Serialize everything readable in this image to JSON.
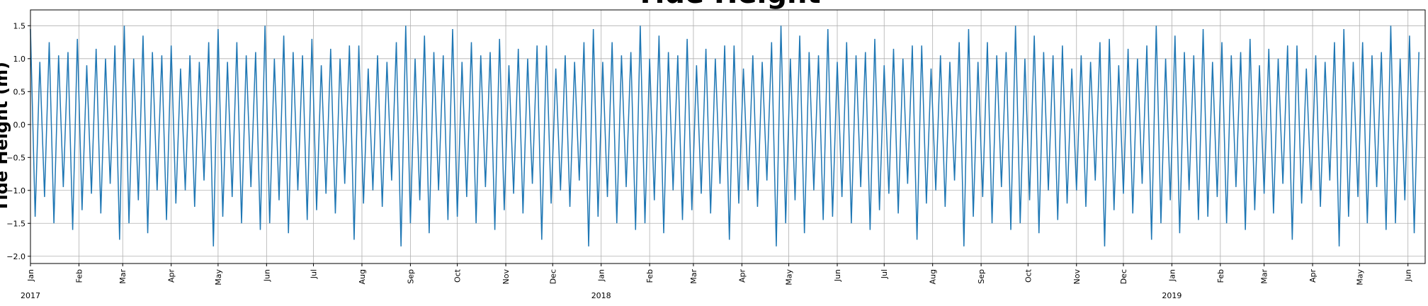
{
  "chart_data": {
    "type": "line",
    "title": "Tide Height",
    "y_label": "Tide Height (m)",
    "x": [
      0,
      3,
      6,
      9,
      12,
      15,
      18,
      21,
      24,
      27,
      30,
      33,
      36,
      39,
      42,
      45,
      48,
      51,
      54,
      57,
      60,
      63,
      66,
      69,
      72,
      75,
      78,
      81,
      84,
      87,
      90,
      93,
      96,
      99,
      102,
      105,
      108,
      111,
      114,
      117,
      120,
      123,
      126,
      129,
      132,
      135,
      138,
      141,
      144,
      147,
      150,
      153,
      156,
      159,
      162,
      165,
      168,
      171,
      174,
      177,
      180,
      183,
      186,
      189,
      192,
      195,
      198,
      201,
      204,
      207,
      210,
      213,
      216,
      219,
      222,
      225,
      228,
      231,
      234,
      237,
      240,
      243,
      246,
      249,
      252,
      255,
      258,
      261,
      264,
      267,
      270,
      273,
      276,
      279,
      282,
      285,
      288,
      291,
      294,
      297,
      300,
      303,
      306,
      309,
      312,
      315,
      318,
      321,
      324,
      327,
      330,
      333,
      336,
      339,
      342,
      345,
      348,
      351,
      354,
      357,
      360,
      363,
      366,
      369,
      372,
      375,
      378,
      381,
      384,
      387,
      390,
      393,
      396,
      399,
      402,
      405,
      408,
      411,
      414,
      417,
      420,
      423,
      426,
      429,
      432,
      435,
      438,
      441,
      444,
      447,
      450,
      453,
      456,
      459,
      462,
      465,
      468,
      471,
      474,
      477,
      480,
      483,
      486,
      489,
      492,
      495,
      498,
      501,
      504,
      507,
      510,
      513,
      516,
      519,
      522,
      525,
      528,
      531,
      534,
      537,
      540,
      543,
      546,
      549,
      552,
      555,
      558,
      561,
      564,
      567,
      570,
      573,
      576,
      579,
      582,
      585,
      588,
      591,
      594,
      597,
      600,
      603,
      606,
      609,
      612,
      615,
      618,
      621,
      624,
      627,
      630,
      633,
      636,
      639,
      642,
      645,
      648,
      651,
      654,
      657,
      660,
      663,
      666,
      669,
      672,
      675,
      678,
      681,
      684,
      687,
      690,
      693,
      696,
      699,
      702,
      705,
      708,
      711,
      714,
      717,
      720,
      723,
      726,
      729,
      732,
      735,
      738,
      741,
      744,
      747,
      750,
      753,
      756,
      759,
      762,
      765,
      768,
      771,
      774,
      777,
      780,
      783,
      786,
      789,
      792,
      795,
      798,
      801,
      804,
      807,
      810,
      813,
      816,
      819,
      822,
      825,
      828,
      831,
      834,
      837,
      840,
      843,
      846,
      849,
      852,
      855,
      858,
      861,
      864,
      867,
      870,
      873,
      876,
      879,
      882,
      885,
      888
    ],
    "series": [
      {
        "color": "#1f77b4",
        "values": [
          1.45,
          -1.4,
          0.95,
          -1.1,
          1.25,
          -1.5,
          1.05,
          -0.95,
          1.1,
          -1.6,
          1.3,
          -1.3,
          0.9,
          -1.05,
          1.15,
          -1.35,
          1.0,
          -0.9,
          1.2,
          -1.75,
          1.5,
          -1.5,
          1.0,
          -1.15,
          1.35,
          -1.65,
          1.1,
          -1.0,
          1.05,
          -1.45,
          1.2,
          -1.2,
          0.85,
          -1.0,
          1.05,
          -1.25,
          0.95,
          -0.85,
          1.25,
          -1.85,
          1.45,
          -1.4,
          0.95,
          -1.1,
          1.25,
          -1.5,
          1.05,
          -0.95,
          1.1,
          -1.6,
          1.5,
          -1.5,
          1.0,
          -1.15,
          1.35,
          -1.65,
          1.1,
          -1.0,
          1.05,
          -1.45,
          1.3,
          -1.3,
          0.9,
          -1.05,
          1.15,
          -1.35,
          1.0,
          -0.9,
          1.2,
          -1.75,
          1.2,
          -1.2,
          0.85,
          -1.0,
          1.05,
          -1.25,
          0.95,
          -0.85,
          1.25,
          -1.85,
          1.5,
          -1.5,
          1.0,
          -1.15,
          1.35,
          -1.65,
          1.1,
          -1.0,
          1.05,
          -1.45,
          1.45,
          -1.4,
          0.95,
          -1.1,
          1.25,
          -1.5,
          1.05,
          -0.95,
          1.1,
          -1.6,
          1.3,
          -1.3,
          0.9,
          -1.05,
          1.15,
          -1.35,
          1.0,
          -0.9,
          1.2,
          -1.75,
          1.2,
          -1.2,
          0.85,
          -1.0,
          1.05,
          -1.25,
          0.95,
          -0.85,
          1.25,
          -1.85,
          1.45,
          -1.4,
          0.95,
          -1.1,
          1.25,
          -1.5,
          1.05,
          -0.95,
          1.1,
          -1.6,
          1.5,
          -1.5,
          1.0,
          -1.15,
          1.35,
          -1.65,
          1.1,
          -1.0,
          1.05,
          -1.45,
          1.3,
          -1.3,
          0.9,
          -1.05,
          1.15,
          -1.35,
          1.0,
          -0.9,
          1.2,
          -1.75,
          1.2,
          -1.2,
          0.85,
          -1.0,
          1.05,
          -1.25,
          0.95,
          -0.85,
          1.25,
          -1.85,
          1.5,
          -1.5,
          1.0,
          -1.15,
          1.35,
          -1.65,
          1.1,
          -1.0,
          1.05,
          -1.45,
          1.45,
          -1.4,
          0.95,
          -1.1,
          1.25,
          -1.5,
          1.05,
          -0.95,
          1.1,
          -1.6,
          1.3,
          -1.3,
          0.9,
          -1.05,
          1.15,
          -1.35,
          1.0,
          -0.9,
          1.2,
          -1.75,
          1.2,
          -1.2,
          0.85,
          -1.0,
          1.05,
          -1.25,
          0.95,
          -0.85,
          1.25,
          -1.85,
          1.45,
          -1.4,
          0.95,
          -1.1,
          1.25,
          -1.5,
          1.05,
          -0.95,
          1.1,
          -1.6,
          1.5,
          -1.5,
          1.0,
          -1.15,
          1.35,
          -1.65,
          1.1,
          -1.0,
          1.05,
          -1.45,
          1.2,
          -1.2,
          0.85,
          -1.0,
          1.05,
          -1.25,
          0.95,
          -0.85,
          1.25,
          -1.85,
          1.3,
          -1.3,
          0.9,
          -1.05,
          1.15,
          -1.35,
          1.0,
          -0.9,
          1.2,
          -1.75,
          1.5,
          -1.5,
          1.0,
          -1.15,
          1.35,
          -1.65,
          1.1,
          -1.0,
          1.05,
          -1.45,
          1.45,
          -1.4,
          0.95,
          -1.1,
          1.25,
          -1.5,
          1.05,
          -0.95,
          1.1,
          -1.6,
          1.3,
          -1.3,
          0.9,
          -1.05,
          1.15,
          -1.35,
          1.0,
          -0.9,
          1.2,
          -1.75,
          1.2,
          -1.2,
          0.85,
          -1.0,
          1.05,
          -1.25,
          0.95,
          -0.85,
          1.25,
          -1.85,
          1.45,
          -1.4,
          0.95,
          -1.1,
          1.25,
          -1.5,
          1.05,
          -0.95,
          1.1,
          -1.6,
          1.5,
          -1.5,
          1.0,
          -1.15,
          1.35,
          -1.65,
          1.1
        ]
      }
    ],
    "xlim": [
      0,
      892
    ],
    "xticks": [
      {
        "value": 0,
        "label": "Jan"
      },
      {
        "value": 31,
        "label": "Feb"
      },
      {
        "value": 59,
        "label": "Mar"
      },
      {
        "value": 90,
        "label": "Apr"
      },
      {
        "value": 120,
        "label": "May"
      },
      {
        "value": 151,
        "label": "Jun"
      },
      {
        "value": 181,
        "label": "Jul"
      },
      {
        "value": 212,
        "label": "Aug"
      },
      {
        "value": 243,
        "label": "Sep"
      },
      {
        "value": 273,
        "label": "Oct"
      },
      {
        "value": 304,
        "label": "Nov"
      },
      {
        "value": 334,
        "label": "Dec"
      },
      {
        "value": 365,
        "label": "Jan"
      },
      {
        "value": 396,
        "label": "Feb"
      },
      {
        "value": 424,
        "label": "Mar"
      },
      {
        "value": 455,
        "label": "Apr"
      },
      {
        "value": 485,
        "label": "May"
      },
      {
        "value": 516,
        "label": "Jun"
      },
      {
        "value": 546,
        "label": "Jul"
      },
      {
        "value": 577,
        "label": "Aug"
      },
      {
        "value": 608,
        "label": "Sep"
      },
      {
        "value": 638,
        "label": "Oct"
      },
      {
        "value": 669,
        "label": "Nov"
      },
      {
        "value": 699,
        "label": "Dec"
      },
      {
        "value": 730,
        "label": "Jan"
      },
      {
        "value": 761,
        "label": "Feb"
      },
      {
        "value": 789,
        "label": "Mar"
      },
      {
        "value": 820,
        "label": "Apr"
      },
      {
        "value": 850,
        "label": "May"
      },
      {
        "value": 881,
        "label": "Jun"
      }
    ],
    "xticks_years": [
      {
        "value": 0,
        "label": "2017"
      },
      {
        "value": 365,
        "label": "2018"
      },
      {
        "value": 730,
        "label": "2019"
      }
    ],
    "ylim": [
      -2.11,
      1.74
    ],
    "yticks": [
      {
        "value": -2.0,
        "label": "−2.0"
      },
      {
        "value": -1.5,
        "label": "−1.5"
      },
      {
        "value": -1.0,
        "label": "−1.0"
      },
      {
        "value": -0.5,
        "label": "−0.5"
      },
      {
        "value": 0.0,
        "label": "0.0"
      },
      {
        "value": 0.5,
        "label": "0.5"
      },
      {
        "value": 1.0,
        "label": "1.0"
      },
      {
        "value": 1.5,
        "label": "1.5"
      }
    ],
    "grid": true
  }
}
